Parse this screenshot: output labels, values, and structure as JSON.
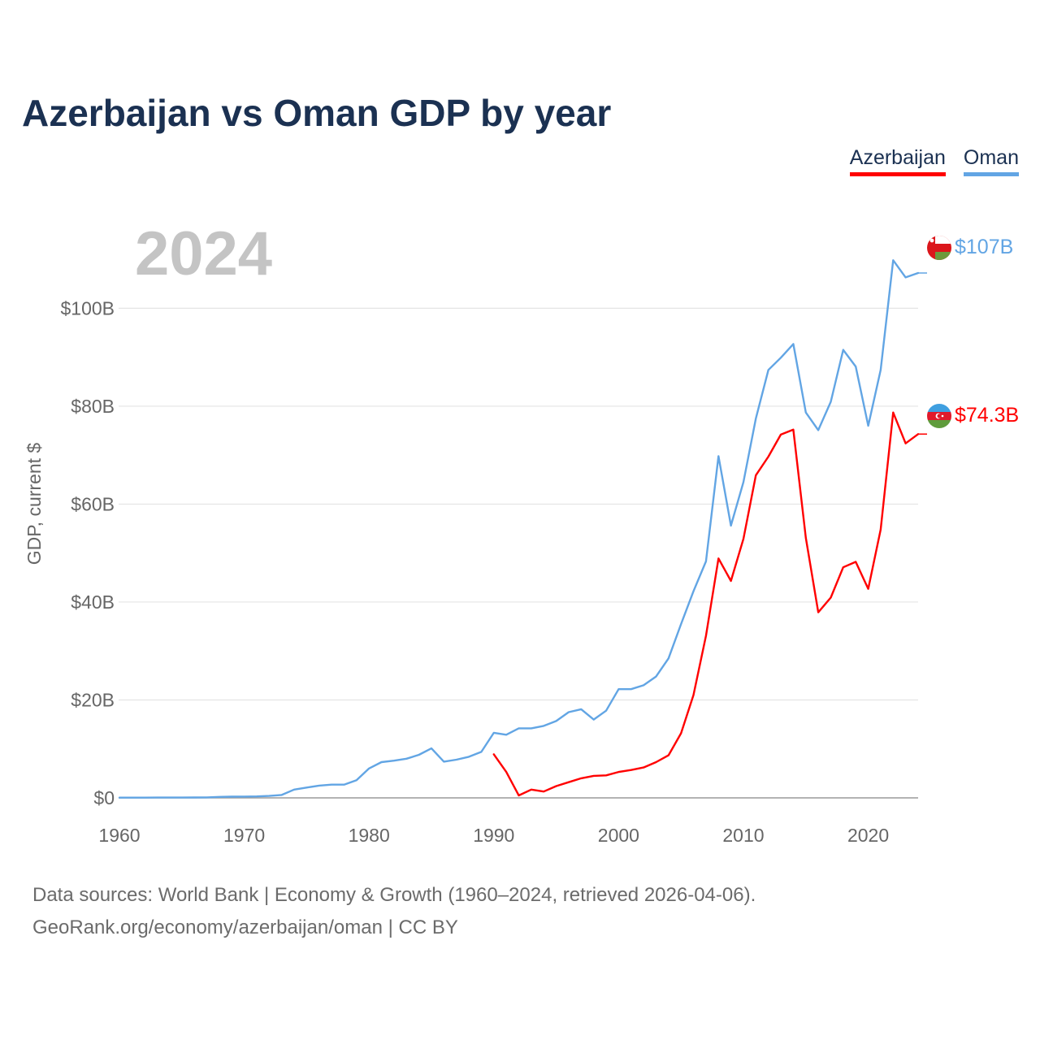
{
  "title": "Azerbaijan vs Oman GDP by year",
  "legend": {
    "azerbaijan": "Azerbaijan",
    "oman": "Oman"
  },
  "footer": {
    "line1": "Data sources: World Bank | Economy & Growth (1960–2024, retrieved 2026-04-06).",
    "line2": "GeoRank.org/economy/azerbaijan/oman | CC BY"
  },
  "chart_data": {
    "type": "line",
    "year_label": "2024",
    "ylabel": "GDP, current $",
    "ylim": [
      0,
      115
    ],
    "xlim": [
      1960,
      2024
    ],
    "y_ticks": [
      0,
      20,
      40,
      60,
      80,
      100
    ],
    "y_tick_labels": [
      "$0",
      "$20B",
      "$40B",
      "$60B",
      "$80B",
      "$100B"
    ],
    "x_ticks": [
      1960,
      1970,
      1980,
      1990,
      2000,
      2010,
      2020
    ],
    "x_tick_labels": [
      "1960",
      "1970",
      "1980",
      "1990",
      "2000",
      "2010",
      "2020"
    ],
    "grid": true,
    "series": [
      {
        "name": "Oman",
        "color": "#62a5e4",
        "end_label": "$107B",
        "icon": "oman-flag-icon",
        "start_year": 1960,
        "values": [
          0.05,
          0.05,
          0.05,
          0.06,
          0.06,
          0.07,
          0.08,
          0.1,
          0.2,
          0.25,
          0.26,
          0.3,
          0.4,
          0.6,
          1.7,
          2.1,
          2.5,
          2.7,
          2.7,
          3.6,
          6.0,
          7.3,
          7.6,
          8.0,
          8.8,
          10.1,
          7.4,
          7.8,
          8.4,
          9.4,
          13.3,
          12.9,
          14.2,
          14.2,
          14.7,
          15.7,
          17.5,
          18.1,
          16.0,
          17.8,
          22.2,
          22.2,
          23.0,
          24.8,
          28.5,
          35.5,
          42.2,
          48.3,
          69.8,
          55.6,
          64.5,
          77.5,
          87.4,
          89.9,
          92.7,
          78.7,
          75.1,
          80.9,
          91.5,
          88.1,
          76.0,
          87.4,
          109.8,
          106.3,
          107.2
        ]
      },
      {
        "name": "Azerbaijan",
        "color": "#ff0000",
        "end_label": "$74.3B",
        "icon": "azerbaijan-flag-icon",
        "start_year": 1990,
        "values": [
          8.9,
          5.3,
          0.5,
          1.7,
          1.3,
          2.4,
          3.2,
          4.0,
          4.5,
          4.6,
          5.3,
          5.7,
          6.2,
          7.3,
          8.7,
          13.2,
          21.0,
          33.1,
          48.9,
          44.3,
          52.9,
          65.9,
          69.7,
          74.2,
          75.2,
          53.1,
          37.9,
          40.9,
          47.1,
          48.2,
          42.7,
          54.8,
          78.7,
          72.4,
          74.3
        ]
      }
    ]
  }
}
